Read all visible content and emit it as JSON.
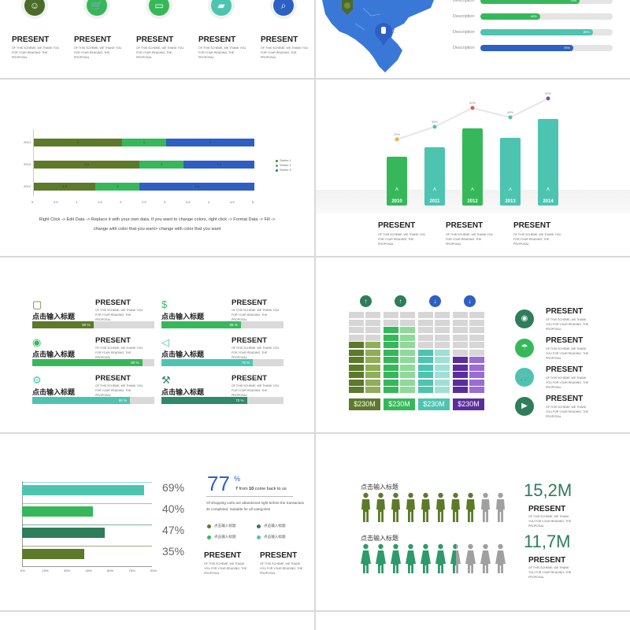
{
  "colors": {
    "dark_green": "#4b6b2a",
    "green": "#36b85a",
    "teal": "#4dc4b0",
    "blue": "#2d5fc4",
    "purple": "#5b2d9c",
    "olive": "#5c7a2a"
  },
  "slide1": {
    "items": [
      {
        "icon": "person-icon",
        "title": "PRESENT",
        "body": "OF THIS SCHEME, WE THANK YOU FOR YOUR READING. THE PROPOSAL"
      },
      {
        "icon": "cart-icon",
        "title": "PRESENT",
        "body": "OF THIS SCHEME, WE THANK YOU FOR YOUR READING. THE PROPOSAL"
      },
      {
        "icon": "credit-card-icon",
        "title": "PRESENT",
        "body": "OF THIS SCHEME, WE THANK YOU FOR YOUR READING. THE PROPOSAL"
      },
      {
        "icon": "truck-icon",
        "title": "PRESENT",
        "body": "OF THIS SCHEME, WE THANK YOU FOR YOUR READING. THE PROPOSAL"
      },
      {
        "icon": "search-icon",
        "title": "PRESENT",
        "body": "OF THIS SCHEME, WE THANK YOU FOR YOUR READING. THE PROPOSAL"
      }
    ]
  },
  "slide2": {
    "bars": [
      {
        "label": "Description",
        "value": 75,
        "value_label": "75%"
      },
      {
        "label": "Description",
        "value": 45,
        "value_label": "45%"
      },
      {
        "label": "Description",
        "value": 85,
        "value_label": "85%"
      },
      {
        "label": "Description",
        "value": 70,
        "value_label": "70%"
      }
    ]
  },
  "slide3": {
    "instructions_line1": "Right Click -> Edit Data -> Replace it with your own data. If you want to change colors, right click -> Format Data -> Fill ->",
    "instructions_line2": "change with color that you want> change with color that you want",
    "chart_data": {
      "type": "bar",
      "orientation": "horizontal-stacked",
      "categories": [
        "2014",
        "2013",
        "2012"
      ],
      "series": [
        {
          "name": "Series 1",
          "values": [
            2,
            2.4,
            1.4
          ]
        },
        {
          "name": "Series 2",
          "values": [
            1,
            1,
            1
          ]
        },
        {
          "name": "Series 3",
          "values": [
            2,
            1.6,
            2.6
          ]
        }
      ],
      "data_labels": [
        [
          "2",
          "1",
          "2"
        ],
        [
          "2.4",
          "1",
          "1.6"
        ],
        [
          "1.4",
          "1",
          "2.6"
        ]
      ],
      "xlim": [
        0,
        5
      ],
      "x_ticks": [
        "0",
        "0.5",
        "1",
        "1.5",
        "2",
        "2.5",
        "3",
        "3.5",
        "4",
        "4.5",
        "5"
      ]
    }
  },
  "slide4": {
    "chart_data": {
      "type": "bar",
      "categories": [
        "2010",
        "2011",
        "2012",
        "2013",
        "2014"
      ],
      "values": [
        20,
        30,
        50,
        40,
        60
      ],
      "point_labels": [
        "20%",
        "30%",
        "50%",
        "40%",
        "60%"
      ]
    },
    "items": [
      {
        "title": "PRESENT",
        "body": "OF THIS SCHEME, WE THANK YOU FOR YOUR READING. THE PROPOSAL"
      },
      {
        "title": "PRESENT",
        "body": "OF THIS SCHEME, WE THANK YOU FOR YOUR READING. THE PROPOSAL"
      },
      {
        "title": "PRESENT",
        "body": "OF THIS SCHEME, WE THANK YOU FOR YOUR READING. THE PROPOSAL"
      }
    ]
  },
  "slide5": {
    "items": [
      {
        "icon": "bag-icon",
        "cn": "点击输入标题",
        "value": 50,
        "value_label": "50 %",
        "title": "PRESENT",
        "body": "OF THIS SCHEME, WE THANK YOU FOR YOUR READING. THE PROPOSAL"
      },
      {
        "icon": "money-icon",
        "cn": "点击输入标题",
        "value": 65,
        "value_label": "65 %",
        "title": "PRESENT",
        "body": "OF THIS SCHEME, WE THANK YOU FOR YOUR READING. THE PROPOSAL"
      },
      {
        "icon": "camera-icon",
        "cn": "点击输入标题",
        "value": 90,
        "value_label": "90 %",
        "title": "PRESENT",
        "body": "OF THIS SCHEME, WE THANK YOU FOR YOUR READING. THE PROPOSAL"
      },
      {
        "icon": "megaphone-icon",
        "cn": "点击输入标题",
        "value": 75,
        "value_label": "75 %",
        "title": "PRESENT",
        "body": "OF THIS SCHEME, WE THANK YOU FOR YOUR READING. THE PROPOSAL"
      },
      {
        "icon": "gear-icon",
        "cn": "点击输入标题",
        "value": 80,
        "value_label": "80 %",
        "title": "PRESENT",
        "body": "OF THIS SCHEME, WE THANK YOU FOR YOUR READING. THE PROPOSAL"
      },
      {
        "icon": "wrench-icon",
        "cn": "点击输入标题",
        "value": 70,
        "value_label": "70 %",
        "title": "PRESENT",
        "body": "OF THIS SCHEME, WE THANK YOU FOR YOUR READING. THE PROPOSAL"
      }
    ]
  },
  "slide6": {
    "columns": [
      {
        "arrow": "up",
        "money": "$230M"
      },
      {
        "arrow": "up",
        "money": "$230M"
      },
      {
        "arrow": "down",
        "money": "$230M"
      },
      {
        "arrow": "down",
        "money": "$230M"
      }
    ],
    "items": [
      {
        "icon": "camera-icon",
        "title": "PRESENT",
        "body": "OF THIS SCHEME, WE THANK YOU FOR YOUR READING. THE PROPOSAL"
      },
      {
        "icon": "umbrella-icon",
        "title": "PRESENT",
        "body": "OF THIS SCHEME, WE THANK YOU FOR YOUR READING. THE PROPOSAL"
      },
      {
        "icon": "cart-icon",
        "title": "PRESENT",
        "body": "OF THIS SCHEME, WE THANK YOU FOR YOUR READING. THE PROPOSAL"
      },
      {
        "icon": "video-icon",
        "title": "PRESENT",
        "body": "OF THIS SCHEME, WE THANK YOU FOR YOUR READING. THE PROPOSAL"
      }
    ]
  },
  "slide7": {
    "chart_data": {
      "type": "bar",
      "orientation": "horizontal",
      "values": [
        69,
        40,
        47,
        35
      ],
      "labels": [
        "69%",
        "40%",
        "47%",
        "35%"
      ],
      "x_ticks": [
        "0%",
        "15%",
        "30%",
        "45%",
        "60%",
        "75%",
        "90%"
      ]
    },
    "big_number": "77",
    "big_unit": "%",
    "sub_a": "7",
    "sub_mid": " from ",
    "sub_b": "10",
    "sub_rest": " come back to us",
    "paragraph": "Of shopping carts are abandoned right before the transaction its completed. Suitable for all categories",
    "legend": [
      "点击输入标题",
      "点击输入标题",
      "点击输入标题",
      "点击输入标题"
    ],
    "items": [
      {
        "title": "PRESENT",
        "body": "OF THIS SCHEME, WE THANK YOU FOR YOUR READING. THE PROPOSAL"
      },
      {
        "title": "PRESENT",
        "body": "OF THIS SCHEME, WE THANK YOU FOR YOUR READING. THE PROPOSAL"
      }
    ]
  },
  "slide8": {
    "rows": [
      {
        "cn": "点击输入标题",
        "figure": "male",
        "filled": 8,
        "total": 10,
        "big": "15,2M",
        "title": "PRESENT",
        "body": "OF THIS SCHEME, WE THANK YOU FOR YOUR READING. THE PROPOSAL"
      },
      {
        "cn": "点击输入标题",
        "figure": "female",
        "filled": 6.5,
        "total": 10,
        "big": "11,7M",
        "title": "PRESENT",
        "body": "OF THIS SCHEME, WE THANK YOU FOR YOUR READING. THE PROPOSAL"
      }
    ]
  }
}
